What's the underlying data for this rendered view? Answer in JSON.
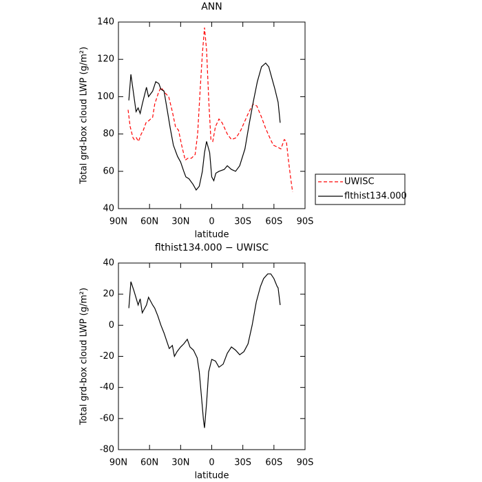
{
  "chart_data": [
    {
      "type": "line",
      "title": "ANN",
      "xlabel": "latitude",
      "ylabel": "Total grd-box cloud LWP (g/m²)",
      "xlim": [
        90,
        -90
      ],
      "ylim": [
        40,
        140
      ],
      "xticks": [
        {
          "value": 90,
          "label": "90N"
        },
        {
          "value": 60,
          "label": "60N"
        },
        {
          "value": 30,
          "label": "30N"
        },
        0,
        {
          "value": -30,
          "label": "30S"
        },
        {
          "value": -60,
          "label": "60S"
        },
        {
          "value": -90,
          "label": "90S"
        }
      ],
      "yticks": [
        40,
        60,
        80,
        100,
        120,
        140
      ],
      "legend": "right",
      "series": [
        {
          "name": "UWISC",
          "color": "#ff0000",
          "dash": true,
          "x": [
            80.7,
            78.7,
            76,
            74.7,
            72.7,
            70.7,
            68,
            66,
            63.4,
            61,
            57,
            55,
            51.5,
            49,
            45,
            41.5,
            38,
            35,
            32,
            29,
            25.6,
            23,
            19.6,
            16,
            13.6,
            11,
            9,
            7,
            5,
            2.8,
            0.8,
            -1,
            -3.6,
            -7,
            -10,
            -15,
            -19,
            -23.6,
            -28,
            -32,
            -36,
            -40,
            -43.5,
            -48,
            -52,
            -56,
            -59.4,
            -63.4,
            -66.7,
            -70,
            -72,
            -74,
            -76,
            -78
          ],
          "values": [
            93,
            84,
            78,
            77,
            78,
            76,
            80,
            82,
            86,
            87,
            89,
            96,
            102,
            105,
            102,
            100,
            92,
            84,
            82,
            74,
            66,
            67,
            67,
            69,
            80,
            105,
            123,
            137,
            125,
            97,
            77,
            76,
            84,
            88,
            86,
            80,
            77,
            78,
            82,
            87,
            92,
            96,
            95,
            89,
            83,
            78,
            74,
            73,
            72,
            77,
            76,
            66,
            57,
            49
          ]
        },
        {
          "name": "flthist134.000",
          "color": "#000000",
          "dash": false,
          "x": [
            80,
            78,
            75,
            73,
            71,
            69,
            67,
            63,
            61,
            57,
            54,
            51,
            49,
            46,
            43,
            40,
            37,
            33,
            30,
            27,
            25,
            22,
            18,
            15,
            12,
            9,
            7,
            5,
            2,
            0,
            -2,
            -4,
            -7,
            -12,
            -15,
            -19,
            -23,
            -27,
            -32,
            -36,
            -40,
            -44,
            -48,
            -52,
            -55,
            -58,
            -61,
            -64,
            -66
          ],
          "values": [
            98,
            112,
            100,
            92,
            94,
            91,
            96,
            105,
            100,
            103,
            108,
            107,
            104,
            103,
            93,
            83,
            74,
            68,
            65,
            60,
            57,
            56,
            53,
            50,
            52,
            60,
            70,
            76,
            70,
            57,
            55,
            59,
            60,
            61,
            63,
            61,
            60,
            63,
            72,
            85,
            97,
            108,
            116,
            118,
            116,
            110,
            104,
            97,
            86
          ]
        }
      ]
    },
    {
      "type": "line",
      "title": "flthist134.000 − UWISC",
      "xlabel": "latitude",
      "ylabel": "Total grd-box cloud LWP (g/m²)",
      "xlim": [
        90,
        -90
      ],
      "ylim": [
        -80,
        40
      ],
      "xticks": [
        {
          "value": 90,
          "label": "90N"
        },
        {
          "value": 60,
          "label": "60N"
        },
        {
          "value": 30,
          "label": "30N"
        },
        0,
        {
          "value": -30,
          "label": "30S"
        },
        {
          "value": -60,
          "label": "60S"
        },
        {
          "value": -90,
          "label": "90S"
        }
      ],
      "yticks": [
        -80,
        -60,
        -40,
        -20,
        0,
        20,
        40
      ],
      "color": "#000000",
      "x": [
        80,
        78,
        75,
        72.7,
        71,
        69,
        67,
        63,
        61,
        57,
        55,
        52,
        49,
        46,
        43.5,
        41,
        38,
        36,
        33.5,
        30,
        27,
        23.6,
        21,
        17.6,
        14,
        12,
        10,
        8,
        7,
        5,
        3,
        0,
        -3.6,
        -7,
        -11,
        -15,
        -19,
        -23,
        -27,
        -31,
        -35,
        -39,
        -43,
        -47,
        -50,
        -54,
        -57,
        -60,
        -63,
        -64,
        -66
      ],
      "values": [
        11,
        28,
        22,
        17,
        13,
        17,
        8,
        13,
        18,
        13,
        11,
        6,
        0,
        -5,
        -10,
        -15,
        -13,
        -20,
        -17,
        -14,
        -12,
        -9,
        -14,
        -16,
        -21,
        -30,
        -45,
        -61,
        -66,
        -50,
        -30,
        -22,
        -23,
        -27,
        -25,
        -18,
        -14,
        -16,
        -19,
        -17,
        -12,
        0,
        15,
        25,
        30,
        33,
        33,
        30,
        25,
        24,
        13
      ]
    }
  ]
}
